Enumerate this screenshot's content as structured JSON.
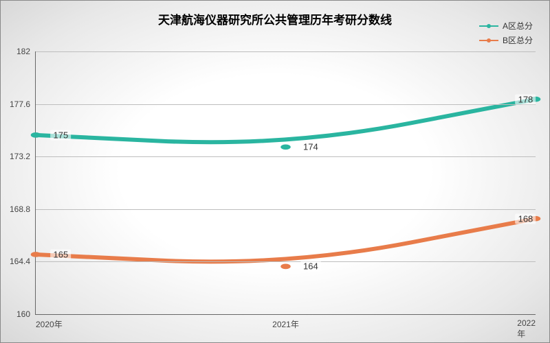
{
  "chart": {
    "type": "line",
    "title": "天津航海仪器研究所公共管理历年考研分数线",
    "title_fontsize": 17,
    "title_color": "#000000",
    "background": "radial-gradient",
    "bg_center": "#ffffff",
    "bg_edge": "#d8d8d8",
    "plot_border_color": "#666666",
    "grid_color": "#bdbdbd",
    "axis_label_color": "#444444",
    "axis_fontsize": 12,
    "x": {
      "categories": [
        "2020年",
        "2021年",
        "2022年"
      ],
      "positions_pct": [
        0,
        50,
        100
      ]
    },
    "y": {
      "min": 160,
      "max": 182,
      "ticks": [
        160,
        164.4,
        168.8,
        173.2,
        177.6,
        182
      ],
      "tick_labels": [
        "160",
        "164.4",
        "168.8",
        "173.2",
        "177.6",
        "182"
      ]
    },
    "series": [
      {
        "name": "A区总分",
        "color": "#2ab5a0",
        "line_width": 2,
        "marker": "circle",
        "marker_size": 5,
        "smooth": true,
        "values": [
          175,
          174,
          178
        ],
        "labels": [
          "175",
          "174",
          "178"
        ],
        "label_dx_pct": [
          5,
          5,
          5
        ],
        "label_dy_pct": [
          0,
          0,
          0
        ]
      },
      {
        "name": "B区总分",
        "color": "#e87c4a",
        "line_width": 2,
        "marker": "circle",
        "marker_size": 5,
        "smooth": true,
        "values": [
          165,
          164,
          168
        ],
        "labels": [
          "165",
          "164",
          "168"
        ],
        "label_dx_pct": [
          5,
          5,
          5
        ],
        "label_dy_pct": [
          0,
          0,
          0
        ]
      }
    ],
    "legend": {
      "position": "top-right",
      "fontsize": 12,
      "text_color": "#333333"
    }
  }
}
